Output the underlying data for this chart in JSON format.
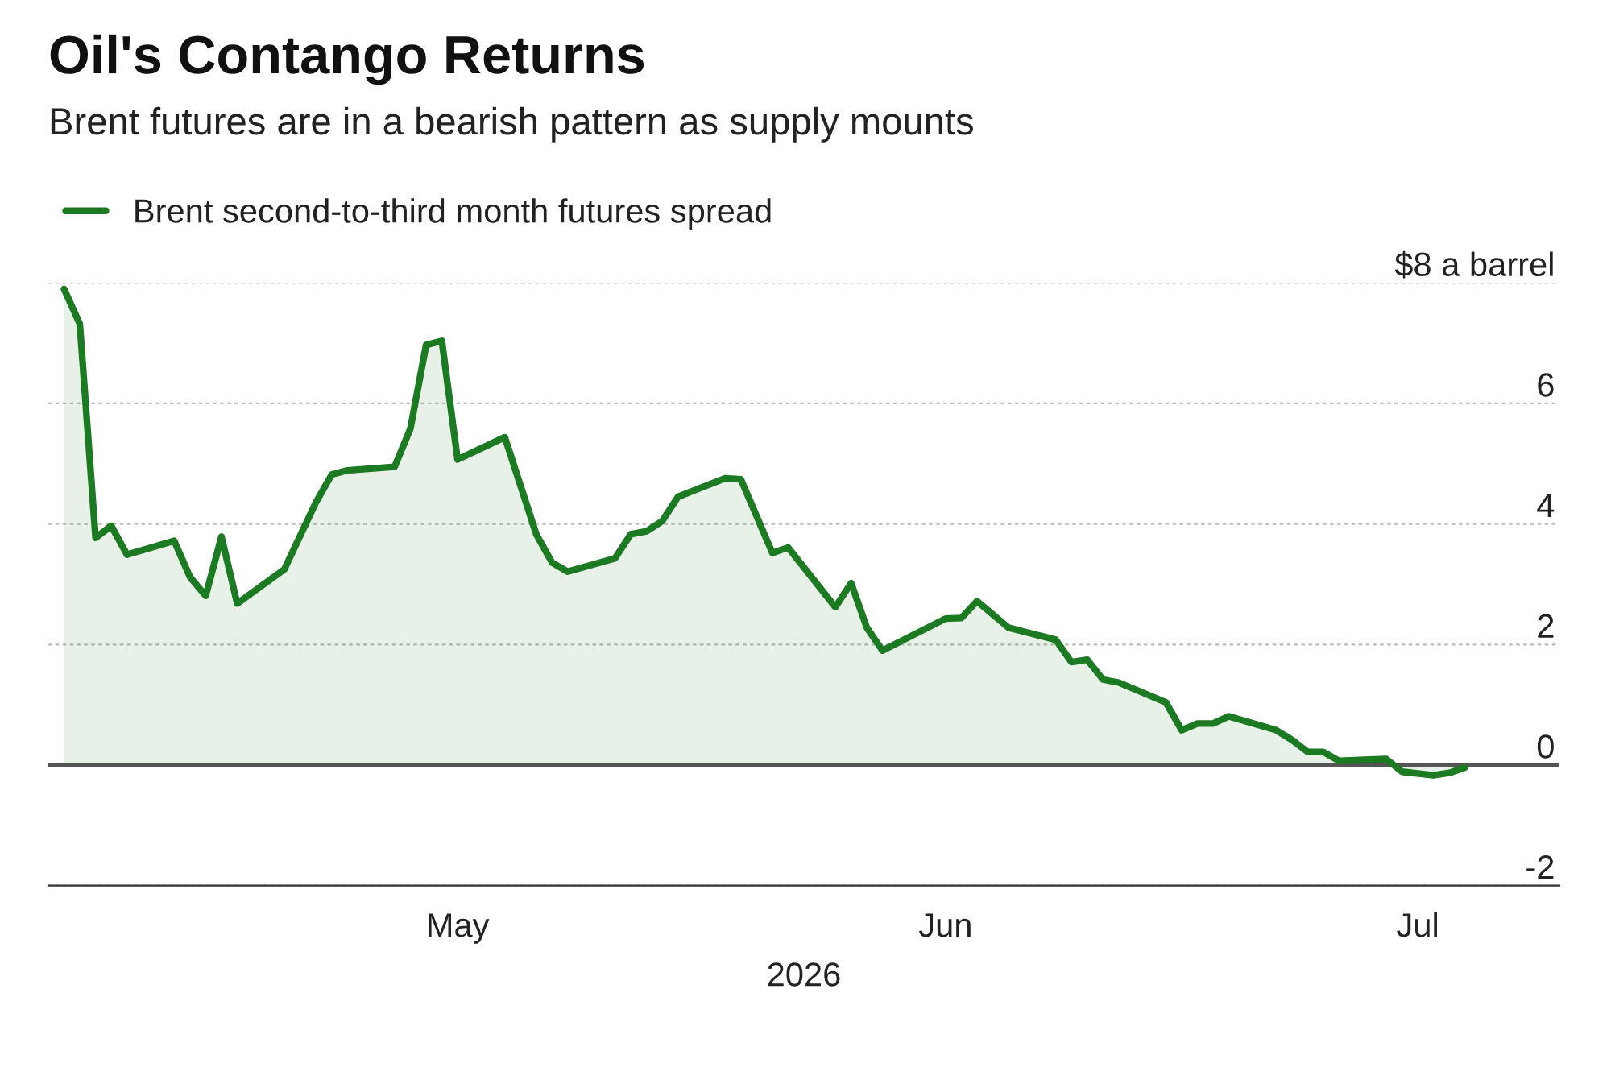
{
  "chart_data": {
    "type": "area",
    "title": "Oil's Contango Returns",
    "subtitle": "Brent futures are in a bearish pattern as supply mounts",
    "xlabel": "2026",
    "x": [
      "2026-04-06",
      "2026-04-07",
      "2026-04-08",
      "2026-04-09",
      "2026-04-10",
      "2026-04-13",
      "2026-04-14",
      "2026-04-15",
      "2026-04-16",
      "2026-04-17",
      "2026-04-20",
      "2026-04-22",
      "2026-04-23",
      "2026-04-24",
      "2026-04-27",
      "2026-04-28",
      "2026-04-29",
      "2026-04-30",
      "2026-05-01",
      "2026-05-04",
      "2026-05-06",
      "2026-05-07",
      "2026-05-08",
      "2026-05-11",
      "2026-05-12",
      "2026-05-13",
      "2026-05-14",
      "2026-05-15",
      "2026-05-18",
      "2026-05-19",
      "2026-05-21",
      "2026-05-22",
      "2026-05-25",
      "2026-05-26",
      "2026-05-27",
      "2026-05-28",
      "2026-06-01",
      "2026-06-02",
      "2026-06-03",
      "2026-06-05",
      "2026-06-08",
      "2026-06-09",
      "2026-06-10",
      "2026-06-11",
      "2026-06-12",
      "2026-06-15",
      "2026-06-16",
      "2026-06-17",
      "2026-06-18",
      "2026-06-19",
      "2026-06-22",
      "2026-06-23",
      "2026-06-24",
      "2026-06-25",
      "2026-06-26",
      "2026-06-29",
      "2026-06-30",
      "2026-07-02",
      "2026-07-03",
      "2026-07-04"
    ],
    "series": [
      {
        "name": "Brent second-to-third month futures spread",
        "color": "#1b7a22",
        "values": [
          7.9,
          7.32,
          3.77,
          3.97,
          3.49,
          3.72,
          3.12,
          2.81,
          3.79,
          2.68,
          3.25,
          4.36,
          4.82,
          4.89,
          4.95,
          5.58,
          6.97,
          7.04,
          5.07,
          5.44,
          3.83,
          3.36,
          3.21,
          3.43,
          3.83,
          3.88,
          4.05,
          4.45,
          4.76,
          4.74,
          3.52,
          3.61,
          2.62,
          3.02,
          2.28,
          1.9,
          2.43,
          2.44,
          2.72,
          2.28,
          2.08,
          1.71,
          1.75,
          1.42,
          1.37,
          1.04,
          0.58,
          0.69,
          0.69,
          0.81,
          0.58,
          0.42,
          0.22,
          0.22,
          0.07,
          0.1,
          -0.11,
          -0.17,
          -0.13,
          -0.04
        ]
      }
    ],
    "xlim": [
      "2026-04-05",
      "2026-07-10"
    ],
    "xticks": [
      {
        "value": "2026-05-01",
        "label": "May"
      },
      {
        "value": "2026-06-01",
        "label": "Jun"
      },
      {
        "value": "2026-07-01",
        "label": "Jul"
      }
    ],
    "ylim": [
      -2,
      8
    ],
    "yticks": [
      -2,
      0,
      2,
      4,
      6,
      {
        "value": 8,
        "label": "$8 a barrel"
      }
    ],
    "ref_lines": [
      {
        "axis": "y",
        "value": 0,
        "color": "#555555"
      }
    ],
    "grid": "y",
    "legend": "top left"
  }
}
